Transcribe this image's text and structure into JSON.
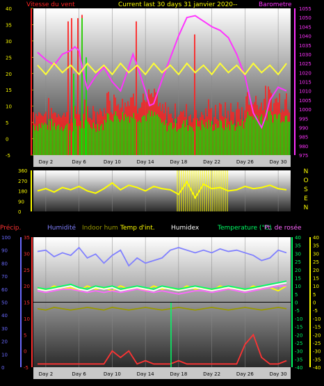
{
  "chart_data": [
    {
      "type": "line",
      "title": "Current last 30 days 31 janvier 2020--",
      "legend": [
        {
          "name": "Vitesse du vent",
          "color": "#ff2222"
        },
        {
          "name": "Barometre",
          "color": "#ff33ff"
        }
      ],
      "y_left": {
        "range": [
          -5,
          40
        ],
        "ticks": [
          -5,
          0,
          5,
          10,
          15,
          20,
          25,
          30,
          35,
          40
        ]
      },
      "y_right": {
        "range": [
          975,
          1055
        ],
        "ticks": [
          975,
          980,
          985,
          990,
          995,
          1000,
          1005,
          1010,
          1015,
          1020,
          1025,
          1030,
          1035,
          1040,
          1045,
          1050,
          1055
        ]
      },
      "x_labels": [
        "Day 2",
        "Day 6",
        "Day 10",
        "Day 14",
        "Day 18",
        "Day 22",
        "Day 26",
        "Day 30"
      ],
      "series": [
        {
          "name": "Barometre",
          "color": "#ff33ff",
          "x": [
            1,
            2,
            3,
            4,
            5,
            5.5,
            6,
            6.5,
            7,
            8,
            9,
            10,
            11,
            12,
            12.5,
            13,
            14,
            14.5,
            15,
            16,
            17,
            18,
            19,
            20,
            21,
            22,
            23,
            24,
            25,
            26,
            26.5,
            27,
            28,
            28.5,
            29,
            30,
            31
          ],
          "values": [
            1031,
            1027,
            1024,
            1030,
            1032,
            1034,
            1032,
            1020,
            1011,
            1018,
            1023,
            1015,
            1010,
            1023,
            1030,
            1024,
            1010,
            1002,
            1003,
            1016,
            1028,
            1040,
            1050,
            1051,
            1048,
            1045,
            1043,
            1039,
            1030,
            1018,
            1008,
            998,
            990,
            996,
            1005,
            1012,
            1010
          ]
        },
        {
          "color": "#ffff33",
          "x": [
            1,
            2,
            3,
            4,
            5,
            6,
            7,
            8,
            9,
            10,
            11,
            12,
            13,
            14,
            15,
            16,
            17,
            18,
            19,
            20,
            21,
            22,
            23,
            24,
            25,
            26,
            27,
            28,
            29,
            30,
            31
          ],
          "values": [
            1024,
            1019,
            1025,
            1020,
            1024,
            1019,
            1025,
            1020,
            1024,
            1019,
            1025,
            1020,
            1024,
            1019,
            1025,
            1020,
            1024,
            1019,
            1025,
            1020,
            1024,
            1019,
            1025,
            1020,
            1024,
            1019,
            1025,
            1020,
            1024,
            1019,
            1025
          ]
        }
      ]
    },
    {
      "type": "line",
      "legend_letters": [
        "N",
        "O",
        "S",
        "E",
        "N"
      ],
      "y_left": {
        "range": [
          0,
          360
        ],
        "ticks": [
          0,
          90,
          180,
          270,
          360
        ]
      },
      "x_labels": [
        "Day 2",
        "Day 6",
        "Day 10",
        "Day 14",
        "Day 18",
        "Day 22",
        "Day 26",
        "Day 30"
      ],
      "series": [
        {
          "color": "#ffff00",
          "x": [
            1,
            2,
            3,
            4,
            5,
            6,
            7,
            8,
            9,
            10,
            11,
            12,
            13,
            14,
            15,
            16,
            17,
            18,
            19,
            20,
            21,
            22,
            23,
            24,
            25,
            26,
            27,
            28,
            29,
            30,
            31
          ],
          "values": [
            180,
            200,
            170,
            210,
            190,
            220,
            180,
            160,
            200,
            250,
            190,
            230,
            210,
            180,
            220,
            200,
            190,
            150,
            260,
            120,
            240,
            200,
            210,
            180,
            190,
            220,
            200,
            210,
            230,
            200,
            190
          ]
        }
      ]
    },
    {
      "type": "line",
      "legend": [
        {
          "name": "Précip.",
          "color": "#ff3333"
        },
        {
          "name": "Humidité",
          "color": "#8080ff"
        },
        {
          "name": "Indoor hum",
          "color": "#999900"
        },
        {
          "name": "Temp d'int.",
          "color": "#ffff00"
        },
        {
          "name": "Humidex",
          "color": "#ffffff"
        },
        {
          "name": "Temperature (°C)",
          "color": "#00ff66"
        },
        {
          "name": "Pt. de rosée",
          "color": "#ff66ff"
        }
      ],
      "y_far_left": {
        "range": [
          0,
          100
        ],
        "ticks": [
          0,
          10,
          20,
          30,
          40,
          50,
          60,
          70,
          80,
          90,
          100
        ]
      },
      "y_left": {
        "range": [
          -5,
          35
        ],
        "ticks": [
          -5,
          0,
          5,
          10,
          15,
          20,
          25,
          30,
          35
        ]
      },
      "y_right": {
        "range": [
          -40,
          40
        ],
        "ticks": [
          -40,
          -35,
          -30,
          -25,
          -20,
          -15,
          -10,
          -5,
          0,
          5,
          10,
          15,
          20,
          25,
          30,
          35,
          40
        ]
      },
      "x_labels": [
        "Day 2",
        "Day 6",
        "Day 10",
        "Day 14",
        "Day 18",
        "Day 22",
        "Day 26",
        "Day 30"
      ],
      "series": [
        {
          "name": "Humidité",
          "color": "#8080ff",
          "x": [
            1,
            2,
            3,
            4,
            5,
            6,
            7,
            8,
            9,
            10,
            11,
            12,
            13,
            14,
            15,
            16,
            17,
            18,
            19,
            20,
            21,
            22,
            23,
            24,
            25,
            26,
            27,
            28,
            29,
            30,
            31
          ],
          "values": [
            89,
            90,
            85,
            88,
            86,
            92,
            84,
            87,
            80,
            86,
            90,
            78,
            84,
            80,
            82,
            84,
            90,
            92,
            90,
            88,
            90,
            88,
            91,
            89,
            90,
            88,
            86,
            82,
            84,
            90,
            88
          ]
        },
        {
          "name": "Indoor hum",
          "color": "#999900",
          "x": [
            1,
            2,
            3,
            4,
            5,
            6,
            7,
            8,
            9,
            10,
            11,
            12,
            13,
            14,
            15,
            16,
            17,
            18,
            19,
            20,
            21,
            22,
            23,
            24,
            25,
            26,
            27,
            28,
            29,
            30,
            31
          ],
          "values": [
            45,
            44,
            46,
            45,
            44,
            45,
            46,
            45,
            44,
            46,
            45,
            44,
            45,
            46,
            45,
            44,
            45,
            46,
            45,
            44,
            45,
            46,
            45,
            44,
            45,
            46,
            45,
            44,
            45,
            46,
            45
          ]
        },
        {
          "name": "Temp d'int.",
          "color": "#ffff00",
          "x": [
            1,
            2,
            3,
            4,
            5,
            6,
            7,
            8,
            9,
            10,
            11,
            12,
            13,
            14,
            15,
            16,
            17,
            18,
            19,
            20,
            21,
            22,
            23,
            24,
            25,
            26,
            27,
            28,
            29,
            30,
            31
          ],
          "values": [
            9,
            7,
            10,
            8,
            9,
            7,
            10,
            8,
            9,
            7,
            10,
            8,
            9,
            7,
            10,
            8,
            9,
            7,
            10,
            8,
            9,
            7,
            10,
            8,
            9,
            7,
            10,
            8,
            9,
            7,
            10
          ]
        },
        {
          "name": "Temperature (°C)",
          "color": "#00ff66",
          "x": [
            1,
            2,
            3,
            4,
            5,
            6,
            7,
            8,
            9,
            10,
            11,
            12,
            13,
            14,
            15,
            16,
            17,
            18,
            19,
            20,
            21,
            22,
            23,
            24,
            25,
            26,
            27,
            28,
            29,
            30,
            31
          ],
          "values": [
            9,
            8,
            9,
            10,
            11,
            9,
            8,
            10,
            9,
            10,
            8,
            9,
            10,
            9,
            8,
            10,
            9,
            8,
            9,
            10,
            9,
            8,
            9,
            10,
            9,
            8,
            9,
            10,
            11,
            12,
            13
          ]
        },
        {
          "name": "Humidex",
          "color": "#ffffff",
          "x": [
            1,
            2,
            3,
            4,
            5,
            6,
            7,
            8,
            9,
            10,
            11,
            12,
            13,
            14,
            15,
            16,
            17,
            18,
            19,
            20,
            21,
            22,
            23,
            24,
            25,
            26,
            27,
            28,
            29,
            30,
            31
          ],
          "values": [
            8,
            7,
            8,
            9,
            10,
            8,
            7,
            9,
            8,
            9,
            7,
            8,
            9,
            8,
            7,
            9,
            8,
            7,
            8,
            9,
            8,
            7,
            8,
            9,
            8,
            7,
            8,
            9,
            10,
            11,
            12
          ]
        },
        {
          "name": "Pt. de rosée",
          "color": "#ff66ff",
          "x": [
            1,
            2,
            3,
            4,
            5,
            6,
            7,
            8,
            9,
            10,
            11,
            12,
            13,
            14,
            15,
            16,
            17,
            18,
            19,
            20,
            21,
            22,
            23,
            24,
            25,
            26,
            27,
            28,
            29,
            30,
            31
          ],
          "values": [
            7,
            6,
            7,
            8,
            8,
            7,
            6,
            7,
            6,
            7,
            6,
            7,
            8,
            7,
            6,
            7,
            6,
            5,
            6,
            7,
            7,
            6,
            7,
            8,
            7,
            6,
            7,
            8,
            9,
            10,
            10
          ]
        },
        {
          "name": "Précip.",
          "color": "#ff3333",
          "x": [
            1,
            2,
            3,
            4,
            5,
            6,
            7,
            8,
            9,
            10,
            11,
            12,
            13,
            14,
            15,
            16,
            17,
            18,
            19,
            20,
            21,
            22,
            23,
            24,
            25,
            26,
            27,
            28,
            29,
            30,
            31
          ],
          "values": [
            -4,
            -4,
            -4,
            -4,
            -4,
            -4,
            -4,
            -4,
            -4,
            0,
            -2,
            0,
            -4,
            -3,
            -4,
            -4,
            -4,
            -3,
            -4,
            -4,
            -4,
            -4,
            -4,
            -4,
            -4,
            2,
            5,
            -2,
            -4,
            -4,
            -3
          ]
        }
      ]
    }
  ]
}
